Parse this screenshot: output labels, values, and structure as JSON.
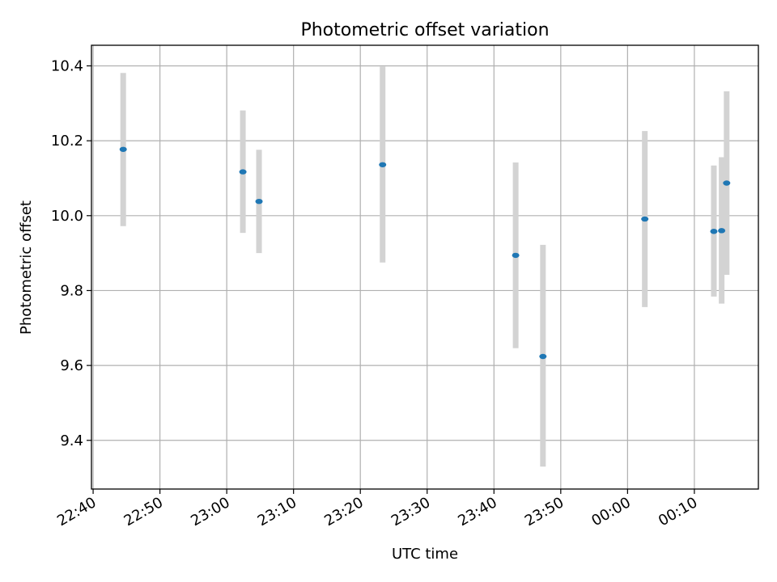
{
  "chart_data": {
    "type": "scatter",
    "title": "Photometric offset variation",
    "xlabel": "UTC time",
    "ylabel": "Photometric offset",
    "x_axis": {
      "kind": "time",
      "range": [
        "22:39:45",
        "00:19:35"
      ],
      "ticks": [
        "22:40",
        "22:50",
        "23:00",
        "23:10",
        "23:20",
        "23:30",
        "23:40",
        "23:50",
        "00:00",
        "00:10"
      ],
      "tick_label_rotation": 30
    },
    "y_axis": {
      "range": [
        9.27,
        10.455
      ],
      "ticks": [
        9.4,
        9.6,
        9.8,
        10.0,
        10.2,
        10.4
      ],
      "tick_labels": [
        "9.4",
        "9.6",
        "9.8",
        "10.0",
        "10.2",
        "10.4"
      ]
    },
    "grid": true,
    "colors": {
      "point": "#1f77b4",
      "errorbar": "#d3d3d3"
    },
    "points": [
      {
        "time": "22:44:30",
        "y": 10.177,
        "ylow": 9.972,
        "yhigh": 10.381
      },
      {
        "time": "23:02:25",
        "y": 10.117,
        "ylow": 9.954,
        "yhigh": 10.281
      },
      {
        "time": "23:04:50",
        "y": 10.038,
        "ylow": 9.9,
        "yhigh": 10.176
      },
      {
        "time": "23:23:20",
        "y": 10.136,
        "ylow": 9.875,
        "yhigh": 10.398
      },
      {
        "time": "23:43:15",
        "y": 9.894,
        "ylow": 9.646,
        "yhigh": 10.142
      },
      {
        "time": "23:47:20",
        "y": 9.624,
        "ylow": 9.33,
        "yhigh": 9.922
      },
      {
        "time": "00:02:35",
        "y": 9.991,
        "ylow": 9.756,
        "yhigh": 10.226
      },
      {
        "time": "00:12:55",
        "y": 9.958,
        "ylow": 9.784,
        "yhigh": 10.134
      },
      {
        "time": "00:14:05",
        "y": 9.96,
        "ylow": 9.765,
        "yhigh": 10.156
      },
      {
        "time": "00:14:50",
        "y": 10.087,
        "ylow": 9.842,
        "yhigh": 10.332
      }
    ]
  }
}
